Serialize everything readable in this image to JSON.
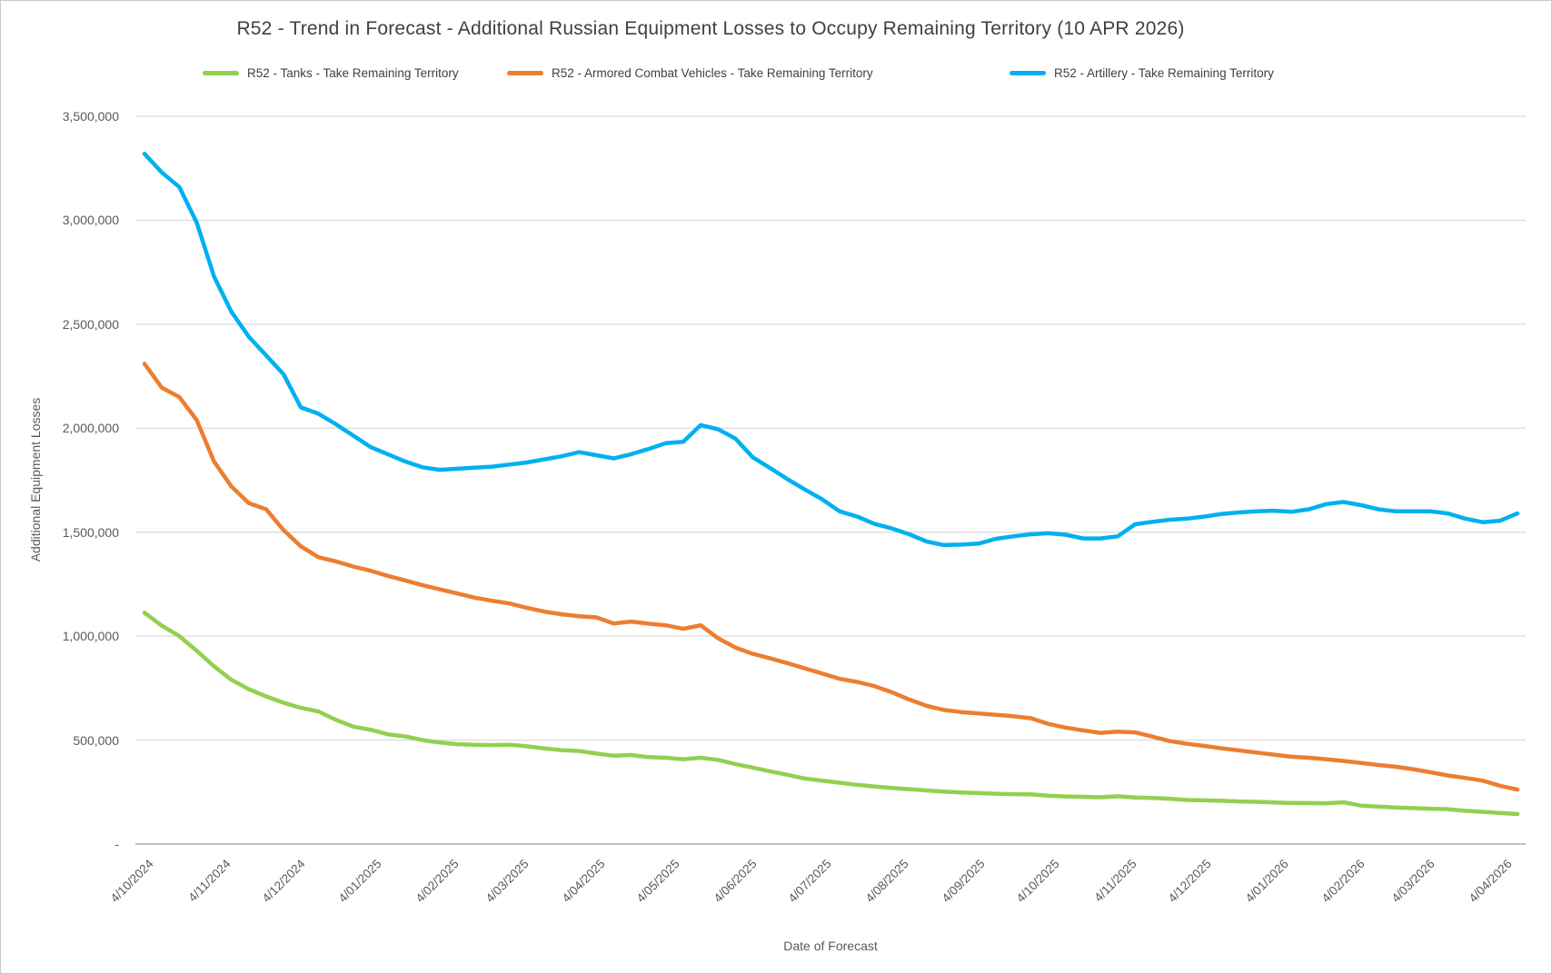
{
  "chart_data": {
    "type": "line",
    "title": "R52 - Trend in Forecast - Additional Russian Equipment Losses to Occupy Remaining Territory (10 APR 2026)",
    "xlabel": "Date of Forecast",
    "ylabel": "Additional Equipment Losses",
    "ylim": [
      0,
      3500000
    ],
    "y_tick_interval": 500000,
    "y_tick_labels": [
      "-",
      "500,000",
      "1,000,000",
      "1,500,000",
      "2,000,000",
      "2,500,000",
      "3,000,000",
      "3,500,000"
    ],
    "x_tick_labels": [
      "4/10/2024",
      "4/11/2024",
      "4/12/2024",
      "4/01/2025",
      "4/02/2025",
      "4/03/2025",
      "4/04/2025",
      "4/05/2025",
      "4/06/2025",
      "4/07/2025",
      "4/08/2025",
      "4/09/2025",
      "4/10/2025",
      "4/11/2025",
      "4/12/2025",
      "4/01/2026",
      "4/02/2026",
      "4/03/2026",
      "4/04/2026"
    ],
    "x_tick_day_offsets": [
      0,
      31,
      61,
      92,
      123,
      151,
      182,
      212,
      243,
      273,
      304,
      335,
      365,
      396,
      426,
      457,
      488,
      516,
      547
    ],
    "total_days_span": 553,
    "point_interval": "weekly",
    "grid": "horizontal",
    "legend_position": "top",
    "series": [
      {
        "name": "R52 - Tanks - Take Remaining Territory",
        "color": "#92d050",
        "values": [
          1113000,
          1050000,
          1000000,
          930000,
          855000,
          790000,
          745000,
          710000,
          680000,
          655000,
          638000,
          598000,
          565000,
          550000,
          528000,
          518000,
          500000,
          488000,
          480000,
          477000,
          476000,
          478000,
          470000,
          460000,
          452000,
          448000,
          435000,
          425000,
          428000,
          418000,
          415000,
          408000,
          415000,
          405000,
          385000,
          368000,
          350000,
          333000,
          315000,
          305000,
          295000,
          285000,
          277000,
          270000,
          264000,
          258000,
          252000,
          248000,
          245000,
          242000,
          240000,
          239000,
          233000,
          229000,
          227000,
          225000,
          230000,
          224000,
          222000,
          218000,
          212000,
          210000,
          208000,
          205000,
          203000,
          200000,
          198000,
          197000,
          196000,
          201000,
          185000,
          180000,
          176000,
          173000,
          170000,
          168000,
          160000,
          155000,
          150000,
          144000
        ]
      },
      {
        "name": "R52 - Armored Combat Vehicles - Take Remaining Territory",
        "color": "#ed7d31",
        "values": [
          2310000,
          2195000,
          2150000,
          2040000,
          1840000,
          1720000,
          1640000,
          1610000,
          1510000,
          1432000,
          1380000,
          1360000,
          1335000,
          1315000,
          1290000,
          1268000,
          1245000,
          1225000,
          1205000,
          1185000,
          1170000,
          1157000,
          1136000,
          1118000,
          1105000,
          1096000,
          1090000,
          1061000,
          1070000,
          1060000,
          1052000,
          1035000,
          1052000,
          990000,
          945000,
          915000,
          893000,
          870000,
          845000,
          820000,
          795000,
          780000,
          760000,
          730000,
          695000,
          665000,
          645000,
          635000,
          628000,
          622000,
          615000,
          605000,
          578000,
          560000,
          547000,
          535000,
          541000,
          537000,
          517000,
          495000,
          482000,
          472000,
          460000,
          450000,
          440000,
          430000,
          420000,
          415000,
          408000,
          400000,
          390000,
          380000,
          372000,
          360000,
          345000,
          330000,
          318000,
          305000,
          280000,
          262000
        ]
      },
      {
        "name": "R52 - Artillery - Take Remaining Territory",
        "color": "#00b0f0",
        "values": [
          3320000,
          3230000,
          3160000,
          2990000,
          2730000,
          2560000,
          2440000,
          2350000,
          2260000,
          2100000,
          2070000,
          2020000,
          1965000,
          1910000,
          1875000,
          1840000,
          1812000,
          1800000,
          1805000,
          1810000,
          1815000,
          1825000,
          1835000,
          1850000,
          1865000,
          1885000,
          1870000,
          1855000,
          1875000,
          1900000,
          1928000,
          1935000,
          2015000,
          1995000,
          1950000,
          1860000,
          1808000,
          1755000,
          1705000,
          1658000,
          1600000,
          1575000,
          1540000,
          1518000,
          1490000,
          1455000,
          1438000,
          1440000,
          1445000,
          1468000,
          1480000,
          1490000,
          1495000,
          1488000,
          1470000,
          1470000,
          1480000,
          1538000,
          1550000,
          1560000,
          1565000,
          1575000,
          1588000,
          1595000,
          1600000,
          1603000,
          1598000,
          1610000,
          1635000,
          1645000,
          1630000,
          1610000,
          1600000,
          1600000,
          1600000,
          1590000,
          1565000,
          1548000,
          1555000,
          1590000
        ]
      }
    ],
    "colors": {
      "gridline": "#d9d9d9",
      "axis_line": "#bfbfbf",
      "tick_text": "#595959",
      "title_text": "#404040"
    }
  }
}
